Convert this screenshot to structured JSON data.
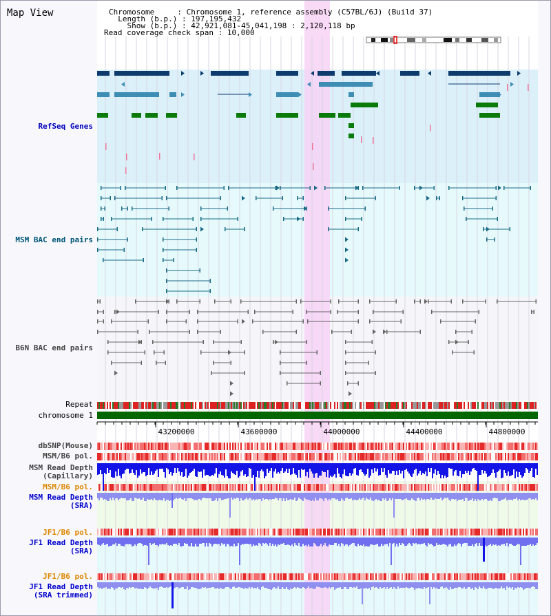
{
  "header": {
    "title": "Map View",
    "chromosome_key": "Chromosome",
    "chromosome_value": "Chromosome 1, reference assembly (C57BL/6J) (Build 37)",
    "length_key": "Length (b.p.)",
    "length_value": "197,195,432",
    "show_key": "Show (b.p.)",
    "show_value": "42,921,081-45,041,198 : 2,120,118 bp",
    "coverage_key": "Read coverage check span",
    "coverage_value": "10,000"
  },
  "labels": {
    "refseq": "RefSeq Genes",
    "msm_bac": "MSM BAC end pairs",
    "b6n_bac": "B6N BAC end pairs",
    "repeat": "Repeat",
    "chromosome": "chromosome 1",
    "dbsnp": "dbSNP(Mouse)",
    "msm_b6_pol_1": "MSM/B6 pol.",
    "msm_depth_cap_1": "MSM Read Depth",
    "msm_depth_cap_2": "(Capillary)",
    "msm_b6_pol_2": "MSM/B6 pol.",
    "msm_depth_sra_1": "MSM Read Depth",
    "msm_depth_sra_2": "(SRA)",
    "jf1_b6_pol_1": "JF1/B6 pol.",
    "jf1_depth_sra_1": "JF1 Read Depth",
    "jf1_depth_sra_2": "(SRA)",
    "jf1_b6_pol_2": "JF1/B6 pol.",
    "jf1_depth_trim_1": "JF1 Read Depth",
    "jf1_depth_trim_2": "(SRA trimmed)"
  },
  "ruler": {
    "ticks": [
      "43200000",
      "43600000",
      "44000000",
      "44400000",
      "44800000"
    ]
  },
  "colors": {
    "refseq_label": "#0000bb",
    "msm_label": "#005577",
    "b6n_label": "#444444",
    "orange_label": "#dd8800",
    "blue_label": "#0000cc",
    "highlight": "#f7d2f4",
    "refseq_bg": "#dcf0fa",
    "msm_bg": "#e6fafc",
    "b6n_bg": "#f6f6fa",
    "chromosome_bar": "#006600"
  }
}
